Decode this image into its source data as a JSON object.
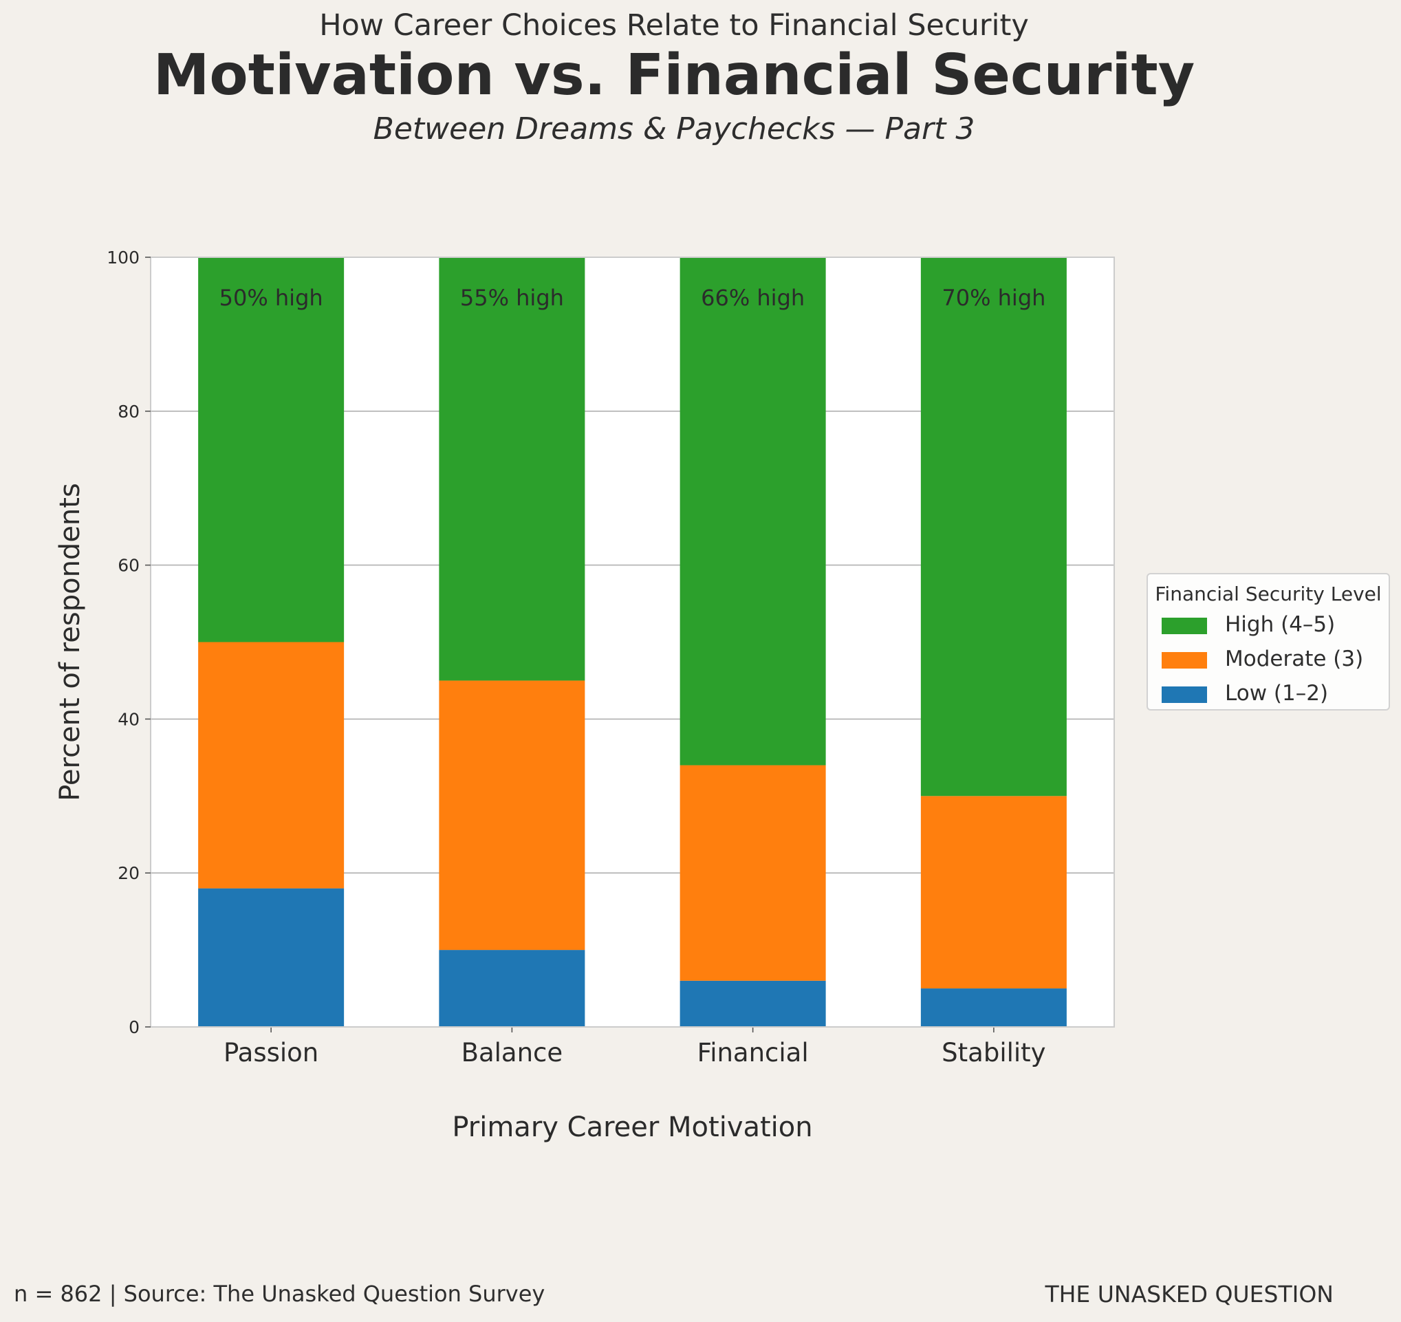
{
  "header": {
    "kicker": "How Career Choices Relate to Financial Security",
    "title": "Motivation vs. Financial Security",
    "subtitle": "Between Dreams & Paychecks — Part 3"
  },
  "footer": {
    "source": "n = 862 | Source: The Unasked Question Survey",
    "brand": "THE UNASKED QUESTION"
  },
  "chart_data": {
    "type": "bar",
    "stacked": true,
    "title": "Motivation vs. Financial Security",
    "xlabel": "Primary Career Motivation",
    "ylabel": "Percent of respondents",
    "ylim": [
      0,
      100
    ],
    "yticks": [
      0,
      20,
      40,
      60,
      80,
      100
    ],
    "grid": true,
    "categories": [
      "Passion",
      "Balance",
      "Financial",
      "Stability"
    ],
    "series": [
      {
        "name": "Low (1–2)",
        "color": "#1f77b4",
        "values": [
          18,
          10,
          6,
          5
        ]
      },
      {
        "name": "Moderate (3)",
        "color": "#ff7f0e",
        "values": [
          32,
          35,
          28,
          25
        ]
      },
      {
        "name": "High (4–5)",
        "color": "#2ca02c",
        "values": [
          50,
          55,
          66,
          70
        ]
      }
    ],
    "annotations": [
      "50% high",
      "55% high",
      "66% high",
      "70% high"
    ],
    "legend": {
      "title": "Financial Security Level",
      "placement": "right",
      "order": [
        "High (4–5)",
        "Moderate (3)",
        "Low (1–2)"
      ]
    }
  }
}
